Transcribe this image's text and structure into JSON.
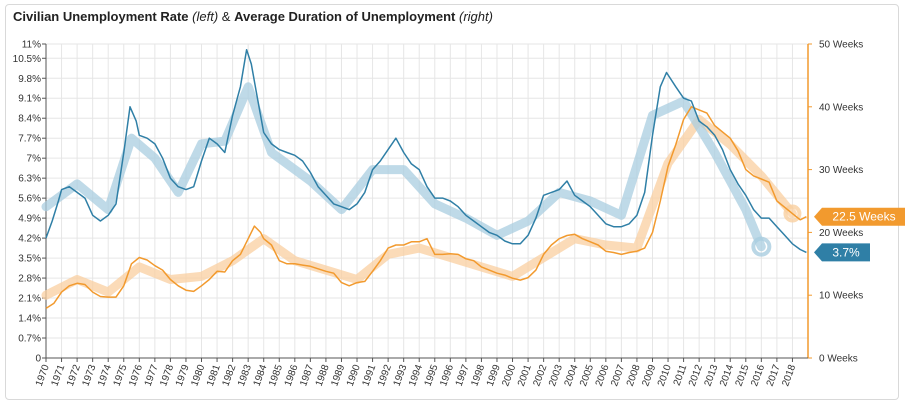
{
  "title": {
    "part1": "Civilian Unemployment Rate",
    "part2": "(left)",
    "part3": "&",
    "part4": "Average Duration of Unemployment",
    "part5": "(right)"
  },
  "colors": {
    "unemployment": "#2f7fa6",
    "duration": "#f29a2e",
    "unemployment_trend": "#a9cde0",
    "duration_trend": "#f9cfa0",
    "right_axis": "#f29a2e",
    "grid": "#e6e6e6"
  },
  "badges": {
    "duration_last": "22.5 Weeks",
    "rate_last": "3.7%"
  },
  "chart_data": {
    "type": "line",
    "x_range": [
      1970,
      2019
    ],
    "x_ticks": [
      "1970",
      "1971",
      "1972",
      "1973",
      "1974",
      "1975",
      "1976",
      "1977",
      "1978",
      "1979",
      "1980",
      "1981",
      "1982",
      "1983",
      "1984",
      "1985",
      "1986",
      "1987",
      "1988",
      "1989",
      "1990",
      "1991",
      "1992",
      "1993",
      "1994",
      "1995",
      "1996",
      "1997",
      "1998",
      "1999",
      "2000",
      "2001",
      "2002",
      "2003",
      "2004",
      "2005",
      "2006",
      "2007",
      "2008",
      "2009",
      "2010",
      "2011",
      "2012",
      "2013",
      "2014",
      "2015",
      "2016",
      "2017",
      "2018"
    ],
    "left_axis": {
      "ylim": [
        0,
        11
      ],
      "ticks": [
        "0",
        "0.7%",
        "1.4%",
        "2.1%",
        "2.8%",
        "3.5%",
        "4.2%",
        "4.9%",
        "5.6%",
        "6.3%",
        "7%",
        "7.7%",
        "8.4%",
        "9.1%",
        "9.8%",
        "10.5%",
        "11%"
      ],
      "tick_values": [
        0,
        0.7,
        1.4,
        2.1,
        2.8,
        3.5,
        4.2,
        4.9,
        5.6,
        6.3,
        7.0,
        7.7,
        8.4,
        9.1,
        9.8,
        10.5,
        11
      ]
    },
    "right_axis": {
      "ylim": [
        0,
        50
      ],
      "ticks": [
        "0 Weeks",
        "10 Weeks",
        "20 Weeks",
        "30 Weeks",
        "40 Weeks",
        "50 Weeks"
      ],
      "tick_values": [
        0,
        10,
        20,
        30,
        40,
        50
      ]
    },
    "series": [
      {
        "axis": "left",
        "points": [
          [
            1970,
            4.2
          ],
          [
            1970.4,
            4.8
          ],
          [
            1970.8,
            5.5
          ],
          [
            1971,
            5.9
          ],
          [
            1971.5,
            6.0
          ],
          [
            1972,
            5.8
          ],
          [
            1972.5,
            5.6
          ],
          [
            1973,
            5.0
          ],
          [
            1973.5,
            4.8
          ],
          [
            1974,
            5.0
          ],
          [
            1974.5,
            5.4
          ],
          [
            1975,
            7.2
          ],
          [
            1975.4,
            8.8
          ],
          [
            1975.8,
            8.3
          ],
          [
            1976,
            7.8
          ],
          [
            1976.5,
            7.7
          ],
          [
            1977,
            7.5
          ],
          [
            1977.5,
            7.0
          ],
          [
            1978,
            6.3
          ],
          [
            1978.5,
            6.0
          ],
          [
            1979,
            5.9
          ],
          [
            1979.5,
            6.0
          ],
          [
            1980,
            6.9
          ],
          [
            1980.5,
            7.7
          ],
          [
            1981,
            7.5
          ],
          [
            1981.5,
            7.2
          ],
          [
            1982,
            8.5
          ],
          [
            1982.5,
            9.5
          ],
          [
            1982.9,
            10.8
          ],
          [
            1983.2,
            10.3
          ],
          [
            1983.5,
            9.4
          ],
          [
            1984,
            7.9
          ],
          [
            1984.5,
            7.5
          ],
          [
            1985,
            7.3
          ],
          [
            1985.5,
            7.2
          ],
          [
            1986,
            7.1
          ],
          [
            1986.5,
            6.9
          ],
          [
            1987,
            6.5
          ],
          [
            1987.5,
            6.0
          ],
          [
            1988,
            5.7
          ],
          [
            1988.5,
            5.4
          ],
          [
            1989,
            5.3
          ],
          [
            1989.5,
            5.2
          ],
          [
            1990,
            5.4
          ],
          [
            1990.5,
            5.8
          ],
          [
            1991,
            6.6
          ],
          [
            1991.5,
            6.9
          ],
          [
            1992,
            7.3
          ],
          [
            1992.5,
            7.7
          ],
          [
            1993,
            7.2
          ],
          [
            1993.5,
            6.8
          ],
          [
            1994,
            6.6
          ],
          [
            1994.5,
            6.0
          ],
          [
            1995,
            5.6
          ],
          [
            1995.5,
            5.6
          ],
          [
            1996,
            5.5
          ],
          [
            1996.5,
            5.3
          ],
          [
            1997,
            5.0
          ],
          [
            1997.5,
            4.8
          ],
          [
            1998,
            4.6
          ],
          [
            1998.5,
            4.4
          ],
          [
            1999,
            4.3
          ],
          [
            1999.5,
            4.1
          ],
          [
            2000,
            4.0
          ],
          [
            2000.5,
            4.0
          ],
          [
            2001,
            4.3
          ],
          [
            2001.5,
            4.9
          ],
          [
            2002,
            5.7
          ],
          [
            2002.5,
            5.8
          ],
          [
            2003,
            5.9
          ],
          [
            2003.5,
            6.2
          ],
          [
            2004,
            5.7
          ],
          [
            2004.5,
            5.5
          ],
          [
            2005,
            5.3
          ],
          [
            2005.5,
            5.0
          ],
          [
            2006,
            4.7
          ],
          [
            2006.5,
            4.6
          ],
          [
            2007,
            4.6
          ],
          [
            2007.5,
            4.7
          ],
          [
            2008,
            5.0
          ],
          [
            2008.5,
            5.8
          ],
          [
            2009,
            7.8
          ],
          [
            2009.5,
            9.5
          ],
          [
            2009.9,
            10.0
          ],
          [
            2010.5,
            9.5
          ],
          [
            2011,
            9.1
          ],
          [
            2011.5,
            9.0
          ],
          [
            2012,
            8.3
          ],
          [
            2012.5,
            8.1
          ],
          [
            2013,
            7.8
          ],
          [
            2013.5,
            7.3
          ],
          [
            2014,
            6.6
          ],
          [
            2014.5,
            6.1
          ],
          [
            2015,
            5.7
          ],
          [
            2015.5,
            5.2
          ],
          [
            2016,
            4.9
          ],
          [
            2016.5,
            4.9
          ],
          [
            2017,
            4.6
          ],
          [
            2017.5,
            4.3
          ],
          [
            2018,
            4.0
          ],
          [
            2018.5,
            3.8
          ],
          [
            2018.9,
            3.7
          ]
        ]
      },
      {
        "axis": "right",
        "points": [
          [
            1970,
            7.9
          ],
          [
            1970.5,
            8.7
          ],
          [
            1971,
            10.5
          ],
          [
            1971.5,
            11.5
          ],
          [
            1972,
            11.9
          ],
          [
            1972.5,
            11.7
          ],
          [
            1973,
            10.5
          ],
          [
            1973.5,
            9.8
          ],
          [
            1974,
            9.7
          ],
          [
            1974.5,
            9.7
          ],
          [
            1975,
            11.5
          ],
          [
            1975.5,
            15.0
          ],
          [
            1976,
            16.0
          ],
          [
            1976.5,
            15.6
          ],
          [
            1977,
            14.7
          ],
          [
            1977.5,
            14.0
          ],
          [
            1978,
            12.5
          ],
          [
            1978.5,
            11.5
          ],
          [
            1979,
            10.8
          ],
          [
            1979.5,
            10.6
          ],
          [
            1980,
            11.5
          ],
          [
            1980.5,
            12.5
          ],
          [
            1981,
            13.8
          ],
          [
            1981.5,
            13.7
          ],
          [
            1982,
            15.5
          ],
          [
            1982.5,
            16.5
          ],
          [
            1983,
            19.0
          ],
          [
            1983.4,
            21.0
          ],
          [
            1983.8,
            20.0
          ],
          [
            1984,
            19.0
          ],
          [
            1984.5,
            18.0
          ],
          [
            1985,
            15.5
          ],
          [
            1985.5,
            15.0
          ],
          [
            1986,
            15.0
          ],
          [
            1986.5,
            14.8
          ],
          [
            1987,
            14.6
          ],
          [
            1987.5,
            14.2
          ],
          [
            1988,
            13.8
          ],
          [
            1988.5,
            13.5
          ],
          [
            1989,
            12.0
          ],
          [
            1989.5,
            11.5
          ],
          [
            1990,
            12.0
          ],
          [
            1990.5,
            12.2
          ],
          [
            1991,
            13.8
          ],
          [
            1991.5,
            15.5
          ],
          [
            1992,
            17.5
          ],
          [
            1992.5,
            18.0
          ],
          [
            1993,
            18.0
          ],
          [
            1993.5,
            18.5
          ],
          [
            1994,
            18.5
          ],
          [
            1994.5,
            19.0
          ],
          [
            1995,
            16.5
          ],
          [
            1995.5,
            16.5
          ],
          [
            1996,
            16.6
          ],
          [
            1996.5,
            16.5
          ],
          [
            1997,
            15.8
          ],
          [
            1997.5,
            15.5
          ],
          [
            1998,
            14.5
          ],
          [
            1998.5,
            14.0
          ],
          [
            1999,
            13.5
          ],
          [
            1999.5,
            13.2
          ],
          [
            2000,
            12.7
          ],
          [
            2000.5,
            12.4
          ],
          [
            2001,
            12.8
          ],
          [
            2001.5,
            14.0
          ],
          [
            2002,
            16.5
          ],
          [
            2002.5,
            18.0
          ],
          [
            2003,
            19.0
          ],
          [
            2003.5,
            19.5
          ],
          [
            2004,
            19.7
          ],
          [
            2004.5,
            19.0
          ],
          [
            2005,
            18.5
          ],
          [
            2005.5,
            18.0
          ],
          [
            2006,
            17.0
          ],
          [
            2006.5,
            16.8
          ],
          [
            2007,
            16.5
          ],
          [
            2007.5,
            16.8
          ],
          [
            2008,
            17.0
          ],
          [
            2008.5,
            17.5
          ],
          [
            2009,
            20.0
          ],
          [
            2009.5,
            25.0
          ],
          [
            2010,
            30.5
          ],
          [
            2010.5,
            34.0
          ],
          [
            2011,
            38.0
          ],
          [
            2011.5,
            40.0
          ],
          [
            2012,
            39.5
          ],
          [
            2012.5,
            39.0
          ],
          [
            2013,
            37.0
          ],
          [
            2013.5,
            36.0
          ],
          [
            2014,
            35.0
          ],
          [
            2014.5,
            33.0
          ],
          [
            2015,
            30.0
          ],
          [
            2015.5,
            29.0
          ],
          [
            2016,
            28.5
          ],
          [
            2016.5,
            28.0
          ],
          [
            2017,
            25.0
          ],
          [
            2017.5,
            24.0
          ],
          [
            2018,
            23.0
          ],
          [
            2018.5,
            22.0
          ],
          [
            2018.9,
            22.5
          ]
        ]
      },
      {
        "axis": "left",
        "points": [
          [
            1970,
            5.3
          ],
          [
            1972,
            6.1
          ],
          [
            1974,
            5.2
          ],
          [
            1975.5,
            7.7
          ],
          [
            1977,
            7.0
          ],
          [
            1978.5,
            5.8
          ],
          [
            1980,
            7.5
          ],
          [
            1981.5,
            7.6
          ],
          [
            1983,
            9.5
          ],
          [
            1984.5,
            7.2
          ],
          [
            1987,
            6.2
          ],
          [
            1989,
            5.2
          ],
          [
            1991,
            6.6
          ],
          [
            1993,
            6.6
          ],
          [
            1995,
            5.4
          ],
          [
            1997,
            4.9
          ],
          [
            1999,
            4.3
          ],
          [
            2001,
            4.8
          ],
          [
            2003,
            5.8
          ],
          [
            2005,
            5.5
          ],
          [
            2007,
            5.0
          ],
          [
            2009,
            8.5
          ],
          [
            2011,
            9.0
          ],
          [
            2013,
            7.2
          ],
          [
            2015,
            5.2
          ],
          [
            2016,
            3.9
          ]
        ]
      },
      {
        "axis": "right",
        "points": [
          [
            1970,
            10.0
          ],
          [
            1972,
            12.5
          ],
          [
            1974,
            10.5
          ],
          [
            1976,
            14.5
          ],
          [
            1978,
            12.5
          ],
          [
            1980,
            13.0
          ],
          [
            1982,
            15.5
          ],
          [
            1984,
            19.0
          ],
          [
            1986,
            15.5
          ],
          [
            1988,
            14.0
          ],
          [
            1990,
            12.5
          ],
          [
            1992,
            16.5
          ],
          [
            1994,
            17.5
          ],
          [
            1996,
            16.0
          ],
          [
            1998,
            14.5
          ],
          [
            2000,
            13.0
          ],
          [
            2002,
            16.0
          ],
          [
            2004,
            19.0
          ],
          [
            2006,
            18.0
          ],
          [
            2008,
            17.5
          ],
          [
            2010,
            31.0
          ],
          [
            2012,
            38.0
          ],
          [
            2014,
            34.0
          ],
          [
            2016,
            29.0
          ],
          [
            2018,
            23.0
          ]
        ]
      }
    ]
  }
}
